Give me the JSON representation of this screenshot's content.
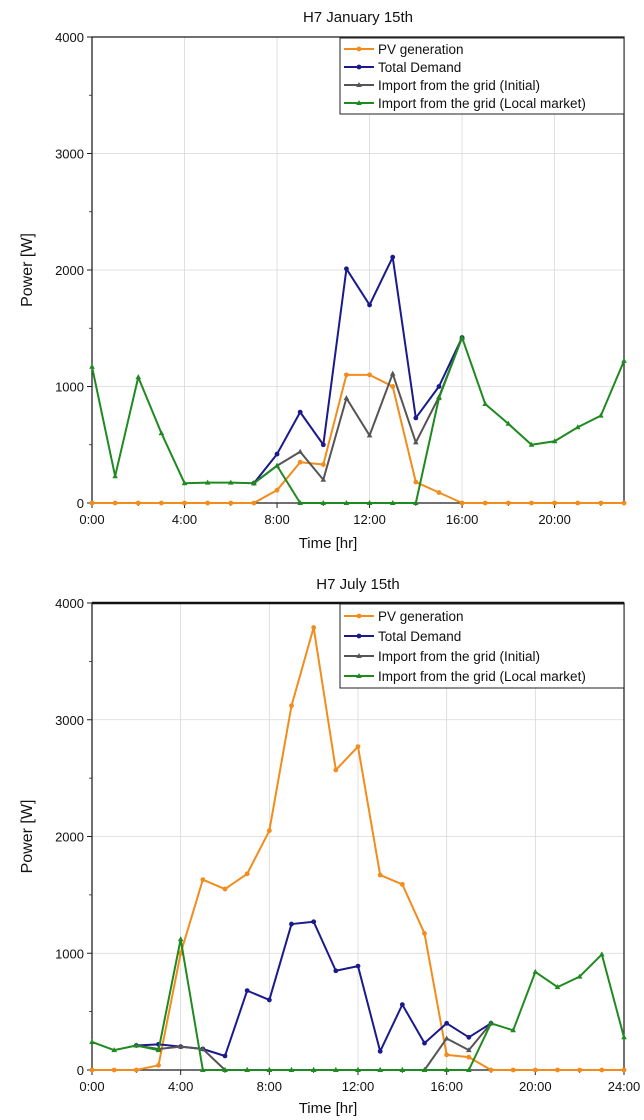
{
  "chart_data": [
    {
      "type": "line",
      "title": "H7 January 15th",
      "xlabel": "Time [hr]",
      "ylabel": "Power [W]",
      "xlim": [
        0,
        23
      ],
      "ylim": [
        0,
        4000
      ],
      "x_ticks": [
        0,
        4,
        8,
        12,
        16,
        20
      ],
      "x_tick_labels": [
        "0:00",
        "4:00",
        "8:00",
        "12:00",
        "16:00",
        "20:00"
      ],
      "y_ticks": [
        0,
        1000,
        2000,
        3000,
        4000
      ],
      "y_tick_labels": [
        "0",
        "1000",
        "2000",
        "3000",
        "4000"
      ],
      "grid": true,
      "legend_position": "top-right",
      "x": [
        0,
        1,
        2,
        3,
        4,
        5,
        6,
        7,
        8,
        9,
        10,
        11,
        12,
        13,
        14,
        15,
        16,
        17,
        18,
        19,
        20,
        21,
        22,
        23
      ],
      "series": [
        {
          "name": "PV generation",
          "color": "#f28c1c",
          "marker": "circle",
          "values": [
            0,
            0,
            0,
            0,
            0,
            0,
            0,
            0,
            110,
            350,
            330,
            1100,
            1100,
            1000,
            180,
            90,
            0,
            0,
            0,
            0,
            0,
            0,
            0,
            0
          ]
        },
        {
          "name": "Total Demand",
          "color": "#1a1a8c",
          "marker": "circle",
          "values": [
            null,
            null,
            null,
            null,
            null,
            null,
            null,
            170,
            420,
            780,
            500,
            2010,
            1700,
            2110,
            730,
            1000,
            1420,
            null,
            null,
            null,
            null,
            null,
            null,
            null
          ]
        },
        {
          "name": "Import from the grid (Initial)",
          "color": "#555555",
          "marker": "triangle",
          "values": [
            null,
            null,
            null,
            null,
            null,
            null,
            null,
            170,
            320,
            440,
            200,
            900,
            580,
            1110,
            520,
            910,
            1420,
            null,
            null,
            null,
            null,
            null,
            null,
            null
          ]
        },
        {
          "name": "Import from the grid (Local market)",
          "color": "#1f8a1f",
          "marker": "triangle",
          "values": [
            1170,
            230,
            1080,
            600,
            170,
            175,
            175,
            170,
            320,
            0,
            0,
            0,
            0,
            0,
            0,
            900,
            1420,
            850,
            680,
            500,
            530,
            650,
            750,
            1220
          ]
        }
      ]
    },
    {
      "type": "line",
      "title": "H7 July 15th",
      "xlabel": "Time [hr]",
      "ylabel": "Power [W]",
      "xlim": [
        0,
        24
      ],
      "ylim": [
        0,
        4000
      ],
      "x_ticks": [
        0,
        4,
        8,
        12,
        16,
        20,
        24
      ],
      "x_tick_labels": [
        "0:00",
        "4:00",
        "8:00",
        "12:00",
        "16:00",
        "20:00",
        "24:00"
      ],
      "y_ticks": [
        0,
        1000,
        2000,
        3000,
        4000
      ],
      "y_tick_labels": [
        "0",
        "1000",
        "2000",
        "3000",
        "4000"
      ],
      "grid": true,
      "legend_position": "top-right",
      "x": [
        0,
        1,
        2,
        3,
        4,
        5,
        6,
        7,
        8,
        9,
        10,
        11,
        12,
        13,
        14,
        15,
        16,
        17,
        18,
        19,
        20,
        21,
        22,
        23,
        24
      ],
      "series": [
        {
          "name": "PV generation",
          "color": "#f28c1c",
          "marker": "circle",
          "values": [
            0,
            0,
            0,
            40,
            1000,
            1630,
            1550,
            1680,
            2050,
            3120,
            3790,
            2570,
            2770,
            1670,
            1590,
            1170,
            130,
            110,
            0,
            0,
            0,
            0,
            0,
            0,
            0
          ]
        },
        {
          "name": "Total Demand",
          "color": "#1a1a8c",
          "marker": "circle",
          "values": [
            null,
            null,
            210,
            220,
            200,
            180,
            120,
            680,
            600,
            1250,
            1270,
            850,
            890,
            160,
            560,
            230,
            400,
            280,
            400,
            null,
            null,
            null,
            null,
            null,
            null
          ]
        },
        {
          "name": "Import from the grid (Initial)",
          "color": "#555555",
          "marker": "triangle",
          "values": [
            null,
            null,
            210,
            180,
            200,
            180,
            0,
            0,
            0,
            0,
            0,
            0,
            0,
            0,
            0,
            0,
            270,
            170,
            400,
            null,
            null,
            null,
            null,
            null,
            null
          ]
        },
        {
          "name": "Import from the grid (Local market)",
          "color": "#1f8a1f",
          "marker": "triangle",
          "values": [
            240,
            170,
            210,
            170,
            1120,
            0,
            0,
            0,
            0,
            0,
            0,
            0,
            0,
            0,
            0,
            0,
            0,
            0,
            400,
            340,
            840,
            710,
            800,
            990,
            280
          ]
        }
      ]
    }
  ]
}
